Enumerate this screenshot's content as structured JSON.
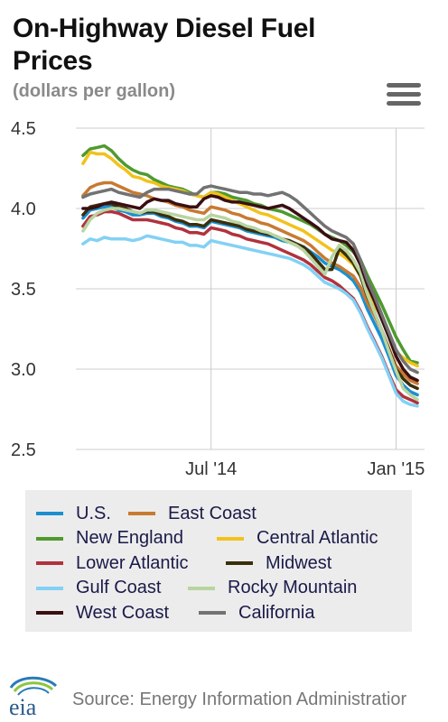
{
  "header": {
    "title": "On-Highway Diesel Fuel Prices",
    "subtitle": "(dollars per gallon)"
  },
  "footer": {
    "logo_text": "eia",
    "source": "Source: Energy Information Administratior"
  },
  "colors": {
    "grid": "#cccccc",
    "axis_text": "#333333",
    "legend_bg": "#ececec"
  },
  "chart_data": {
    "type": "line",
    "ylim": [
      2.5,
      4.5
    ],
    "yticks": [
      2.5,
      3.0,
      3.5,
      4.0,
      4.5
    ],
    "ytick_labels": [
      "2.5",
      "3.0",
      "3.5",
      "4.0",
      "4.5"
    ],
    "xlim": [
      0,
      49
    ],
    "xticks": [
      {
        "x": 19,
        "label": "Jul '14"
      },
      {
        "x": 45,
        "label": "Jan '15"
      }
    ],
    "grid": true,
    "legend_position": "bottom",
    "series": [
      {
        "name": "U.S.",
        "color": "#1b8fd1",
        "values": [
          3.94,
          3.99,
          4.0,
          4.01,
          4.01,
          3.99,
          3.98,
          3.96,
          3.96,
          3.97,
          3.97,
          3.95,
          3.94,
          3.92,
          3.91,
          3.89,
          3.89,
          3.88,
          3.92,
          3.91,
          3.9,
          3.89,
          3.88,
          3.86,
          3.85,
          3.84,
          3.83,
          3.82,
          3.8,
          3.79,
          3.77,
          3.76,
          3.73,
          3.7,
          3.66,
          3.64,
          3.62,
          3.59,
          3.55,
          3.48,
          3.37,
          3.28,
          3.19,
          3.08,
          2.96,
          2.9,
          2.86,
          2.84
        ]
      },
      {
        "name": "East Coast",
        "color": "#c87a31",
        "values": [
          4.08,
          4.13,
          4.15,
          4.16,
          4.16,
          4.14,
          4.12,
          4.1,
          4.09,
          4.08,
          4.06,
          4.05,
          4.04,
          4.02,
          4.01,
          3.99,
          3.98,
          3.97,
          4.01,
          4.0,
          3.99,
          3.97,
          3.96,
          3.94,
          3.93,
          3.91,
          3.9,
          3.88,
          3.86,
          3.84,
          3.82,
          3.8,
          3.77,
          3.73,
          3.69,
          3.66,
          3.64,
          3.61,
          3.58,
          3.51,
          3.41,
          3.33,
          3.24,
          3.13,
          3.02,
          2.97,
          2.93,
          2.91
        ]
      },
      {
        "name": "New England",
        "color": "#4f9a2f",
        "values": [
          4.33,
          4.37,
          4.38,
          4.39,
          4.36,
          4.31,
          4.27,
          4.24,
          4.22,
          4.21,
          4.18,
          4.16,
          4.14,
          4.13,
          4.12,
          4.1,
          4.08,
          4.07,
          4.1,
          4.1,
          4.09,
          4.07,
          4.06,
          4.05,
          4.03,
          4.02,
          4.0,
          3.99,
          3.98,
          3.96,
          3.94,
          3.92,
          3.9,
          3.87,
          3.84,
          3.82,
          3.8,
          3.77,
          3.73,
          3.68,
          3.58,
          3.49,
          3.4,
          3.3,
          3.2,
          3.12,
          3.05,
          3.04
        ]
      },
      {
        "name": "Central Atlantic",
        "color": "#f2c21b",
        "values": [
          4.28,
          4.35,
          4.34,
          4.34,
          4.31,
          4.27,
          4.24,
          4.2,
          4.19,
          4.17,
          4.16,
          4.14,
          4.13,
          4.12,
          4.11,
          4.09,
          4.08,
          4.07,
          4.1,
          4.09,
          4.07,
          4.05,
          4.03,
          4.01,
          3.99,
          3.97,
          3.96,
          3.94,
          3.92,
          3.9,
          3.88,
          3.86,
          3.83,
          3.8,
          3.77,
          3.74,
          3.72,
          3.69,
          3.65,
          3.58,
          3.47,
          3.39,
          3.33,
          3.22,
          3.11,
          3.07,
          3.04,
          3.02
        ]
      },
      {
        "name": "Lower Atlantic",
        "color": "#b0323e",
        "values": [
          3.89,
          3.95,
          3.96,
          3.98,
          3.98,
          3.97,
          3.95,
          3.93,
          3.93,
          3.93,
          3.92,
          3.91,
          3.9,
          3.88,
          3.87,
          3.85,
          3.85,
          3.84,
          3.88,
          3.87,
          3.86,
          3.84,
          3.83,
          3.81,
          3.8,
          3.79,
          3.78,
          3.76,
          3.74,
          3.72,
          3.7,
          3.68,
          3.65,
          3.61,
          3.57,
          3.55,
          3.52,
          3.48,
          3.44,
          3.36,
          3.26,
          3.17,
          3.08,
          2.97,
          2.87,
          2.83,
          2.81,
          2.79
        ]
      },
      {
        "name": "Midwest",
        "color": "#3b2e0b",
        "values": [
          3.96,
          4.01,
          4.02,
          4.03,
          4.03,
          4.01,
          4.0,
          3.98,
          3.97,
          3.98,
          3.98,
          3.96,
          3.95,
          3.93,
          3.92,
          3.9,
          3.9,
          3.89,
          3.93,
          3.92,
          3.91,
          3.9,
          3.89,
          3.87,
          3.86,
          3.85,
          3.84,
          3.83,
          3.81,
          3.8,
          3.78,
          3.76,
          3.72,
          3.67,
          3.62,
          3.62,
          3.75,
          3.71,
          3.66,
          3.58,
          3.45,
          3.35,
          3.24,
          3.12,
          3.0,
          2.94,
          2.9,
          2.88
        ]
      },
      {
        "name": "Gulf Coast",
        "color": "#82d1f5",
        "values": [
          3.78,
          3.81,
          3.8,
          3.82,
          3.81,
          3.81,
          3.81,
          3.8,
          3.81,
          3.83,
          3.82,
          3.81,
          3.8,
          3.79,
          3.79,
          3.77,
          3.77,
          3.76,
          3.8,
          3.79,
          3.78,
          3.77,
          3.76,
          3.75,
          3.74,
          3.73,
          3.72,
          3.71,
          3.7,
          3.69,
          3.67,
          3.65,
          3.62,
          3.58,
          3.54,
          3.52,
          3.5,
          3.47,
          3.43,
          3.35,
          3.25,
          3.16,
          3.07,
          2.96,
          2.85,
          2.8,
          2.78,
          2.77
        ]
      },
      {
        "name": "Rocky Mountain",
        "color": "#b9d4a0",
        "values": [
          3.86,
          3.93,
          3.97,
          3.99,
          4.0,
          4.0,
          3.99,
          3.98,
          3.97,
          3.99,
          3.99,
          3.98,
          3.97,
          3.96,
          3.95,
          3.94,
          3.93,
          3.93,
          3.96,
          3.95,
          3.94,
          3.92,
          3.91,
          3.89,
          3.88,
          3.86,
          3.85,
          3.83,
          3.81,
          3.79,
          3.77,
          3.74,
          3.69,
          3.64,
          3.59,
          3.7,
          3.77,
          3.74,
          3.68,
          3.6,
          3.46,
          3.35,
          3.24,
          3.11,
          2.99,
          2.88,
          2.84,
          2.81
        ]
      },
      {
        "name": "West Coast",
        "color": "#3a0f12",
        "values": [
          4.0,
          4.0,
          4.01,
          4.03,
          4.04,
          4.03,
          4.02,
          4.01,
          4.0,
          4.04,
          4.06,
          4.05,
          4.05,
          4.03,
          4.02,
          4.01,
          4.01,
          4.06,
          4.08,
          4.07,
          4.05,
          4.04,
          4.04,
          4.03,
          4.02,
          4.01,
          4.0,
          4.01,
          4.02,
          4.0,
          3.97,
          3.94,
          3.91,
          3.88,
          3.84,
          3.81,
          3.8,
          3.79,
          3.74,
          3.65,
          3.52,
          3.42,
          3.31,
          3.2,
          3.08,
          3.0,
          2.95,
          2.93
        ]
      },
      {
        "name": "California",
        "color": "#727272",
        "values": [
          4.07,
          4.09,
          4.1,
          4.11,
          4.12,
          4.1,
          4.09,
          4.08,
          4.07,
          4.1,
          4.12,
          4.12,
          4.12,
          4.11,
          4.1,
          4.09,
          4.09,
          4.13,
          4.14,
          4.13,
          4.12,
          4.11,
          4.1,
          4.1,
          4.09,
          4.09,
          4.08,
          4.09,
          4.1,
          4.08,
          4.05,
          4.01,
          3.97,
          3.93,
          3.89,
          3.86,
          3.84,
          3.82,
          3.78,
          3.68,
          3.55,
          3.45,
          3.34,
          3.23,
          3.12,
          3.05,
          3.0,
          2.98
        ]
      }
    ]
  }
}
